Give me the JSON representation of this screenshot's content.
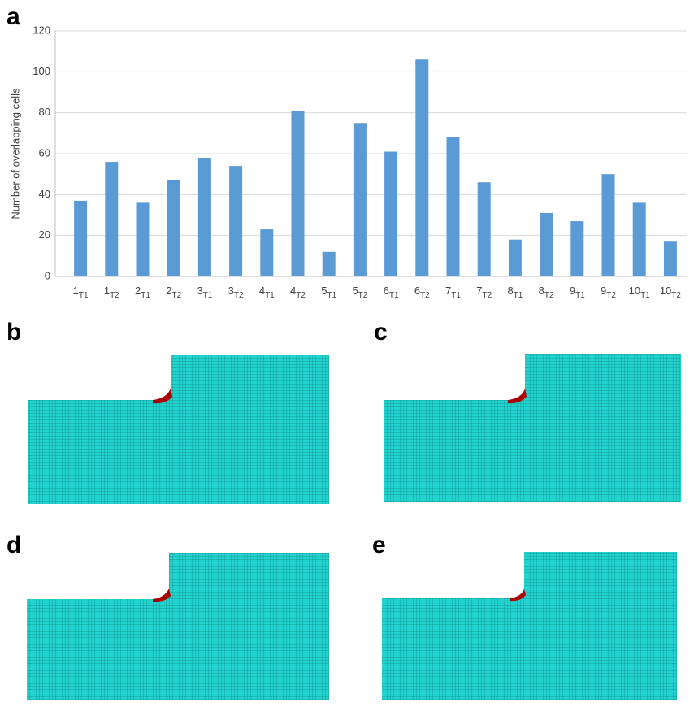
{
  "chart_data": {
    "type": "bar",
    "panel_label": "a",
    "y_label": "Number of overlapping cells",
    "categories": [
      [
        "1",
        "T1"
      ],
      [
        "1",
        "T2"
      ],
      [
        "2",
        "T1"
      ],
      [
        "2",
        "T2"
      ],
      [
        "3",
        "T1"
      ],
      [
        "3",
        "T2"
      ],
      [
        "4",
        "T1"
      ],
      [
        "4",
        "T2"
      ],
      [
        "5",
        "T1"
      ],
      [
        "5",
        "T2"
      ],
      [
        "6",
        "T1"
      ],
      [
        "6",
        "T2"
      ],
      [
        "7",
        "T1"
      ],
      [
        "7",
        "T2"
      ],
      [
        "8",
        "T1"
      ],
      [
        "8",
        "T2"
      ],
      [
        "9",
        "T1"
      ],
      [
        "9",
        "T2"
      ],
      [
        "10",
        "T1"
      ],
      [
        "10",
        "T2"
      ]
    ],
    "values": [
      37,
      56,
      36,
      47,
      58,
      54,
      23,
      81,
      12,
      75,
      61,
      106,
      68,
      46,
      18,
      31,
      27,
      50,
      36,
      17
    ],
    "color": "#5b9bd5",
    "ylim": [
      0,
      120
    ],
    "yticks": [
      0,
      20,
      40,
      60,
      80,
      100,
      120
    ],
    "grid": true
  },
  "panels": [
    "b",
    "c",
    "d",
    "e"
  ]
}
